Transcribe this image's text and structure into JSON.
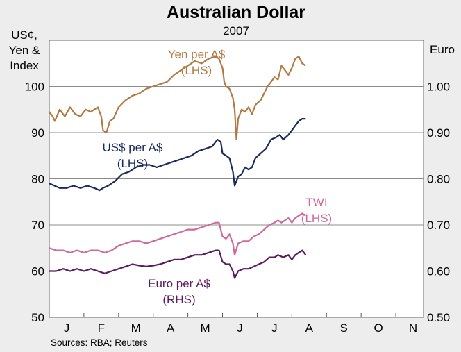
{
  "chart_data": {
    "type": "line",
    "title": "Australian Dollar",
    "subtitle": "2007",
    "left_axis": {
      "title_lines": [
        "US¢,",
        "Yen &",
        "Index"
      ],
      "ylim": [
        50,
        110
      ],
      "ticks": [
        50,
        60,
        70,
        80,
        90,
        100
      ],
      "tick_labels": [
        "50",
        "60",
        "70",
        "80",
        "90",
        "100"
      ]
    },
    "right_axis": {
      "title": "Euro",
      "ylim": [
        0.5,
        1.1
      ],
      "ticks": [
        0.5,
        0.6,
        0.7,
        0.8,
        0.9,
        1.0
      ],
      "tick_labels": [
        "0.50",
        "0.60",
        "0.70",
        "0.80",
        "0.90",
        "1.00"
      ]
    },
    "months": [
      "J",
      "F",
      "M",
      "A",
      "M",
      "J",
      "J",
      "A",
      "S",
      "O",
      "N"
    ],
    "grid": true,
    "source": "Sources: RBA; Reuters",
    "series": [
      {
        "name": "Yen per A$",
        "label_lines": [
          "Yen per A$",
          "(LHS)"
        ],
        "axis": "left",
        "color": "#b07a45",
        "points": [
          [
            0.0,
            94.5
          ],
          [
            0.1,
            93.5
          ],
          [
            0.16,
            92.5
          ],
          [
            0.3,
            95.0
          ],
          [
            0.45,
            93.5
          ],
          [
            0.6,
            95.5
          ],
          [
            0.75,
            94.0
          ],
          [
            0.9,
            93.5
          ],
          [
            1.05,
            95.0
          ],
          [
            1.2,
            94.5
          ],
          [
            1.4,
            95.5
          ],
          [
            1.5,
            93.5
          ],
          [
            1.55,
            90.5
          ],
          [
            1.65,
            90.0
          ],
          [
            1.75,
            92.5
          ],
          [
            1.85,
            93.0
          ],
          [
            2.0,
            95.5
          ],
          [
            2.2,
            97.0
          ],
          [
            2.4,
            98.0
          ],
          [
            2.6,
            98.5
          ],
          [
            2.8,
            99.5
          ],
          [
            3.0,
            100.0
          ],
          [
            3.2,
            100.5
          ],
          [
            3.4,
            101.0
          ],
          [
            3.6,
            102.5
          ],
          [
            3.8,
            103.5
          ],
          [
            4.0,
            104.5
          ],
          [
            4.2,
            105.5
          ],
          [
            4.4,
            105.0
          ],
          [
            4.6,
            106.0
          ],
          [
            4.8,
            106.5
          ],
          [
            4.9,
            106.0
          ],
          [
            5.0,
            104.0
          ],
          [
            5.05,
            101.0
          ],
          [
            5.1,
            100.0
          ],
          [
            5.2,
            99.5
          ],
          [
            5.3,
            97.5
          ],
          [
            5.35,
            95.0
          ],
          [
            5.4,
            88.5
          ],
          [
            5.45,
            93.0
          ],
          [
            5.55,
            95.0
          ],
          [
            5.65,
            94.5
          ],
          [
            5.75,
            95.5
          ],
          [
            5.85,
            94.0
          ],
          [
            5.95,
            96.0
          ],
          [
            6.1,
            97.0
          ],
          [
            6.3,
            100.0
          ],
          [
            6.5,
            102.0
          ],
          [
            6.6,
            101.5
          ],
          [
            6.7,
            104.5
          ],
          [
            6.8,
            103.5
          ],
          [
            6.9,
            102.5
          ],
          [
            7.0,
            104.0
          ],
          [
            7.1,
            106.0
          ],
          [
            7.2,
            106.5
          ],
          [
            7.3,
            105.0
          ],
          [
            7.4,
            104.5
          ]
        ]
      },
      {
        "name": "US$ per A$",
        "label_lines": [
          "US$ per A$",
          "(LHS)"
        ],
        "axis": "left",
        "color": "#1a2a5e",
        "points": [
          [
            0.0,
            79.0
          ],
          [
            0.15,
            78.5
          ],
          [
            0.3,
            78.0
          ],
          [
            0.5,
            78.0
          ],
          [
            0.7,
            78.5
          ],
          [
            0.9,
            78.0
          ],
          [
            1.1,
            78.5
          ],
          [
            1.3,
            78.0
          ],
          [
            1.45,
            77.5
          ],
          [
            1.55,
            78.0
          ],
          [
            1.7,
            78.5
          ],
          [
            1.9,
            79.5
          ],
          [
            2.1,
            81.0
          ],
          [
            2.3,
            81.5
          ],
          [
            2.5,
            82.5
          ],
          [
            2.7,
            83.0
          ],
          [
            2.9,
            83.0
          ],
          [
            3.1,
            82.5
          ],
          [
            3.3,
            83.0
          ],
          [
            3.5,
            83.5
          ],
          [
            3.7,
            84.0
          ],
          [
            3.9,
            84.5
          ],
          [
            4.1,
            85.0
          ],
          [
            4.3,
            86.0
          ],
          [
            4.5,
            86.5
          ],
          [
            4.7,
            87.0
          ],
          [
            4.85,
            88.5
          ],
          [
            4.95,
            88.0
          ],
          [
            5.0,
            85.5
          ],
          [
            5.1,
            85.0
          ],
          [
            5.2,
            84.5
          ],
          [
            5.3,
            81.5
          ],
          [
            5.35,
            78.5
          ],
          [
            5.45,
            80.5
          ],
          [
            5.55,
            81.0
          ],
          [
            5.65,
            82.5
          ],
          [
            5.75,
            82.0
          ],
          [
            5.85,
            82.5
          ],
          [
            5.95,
            84.5
          ],
          [
            6.1,
            85.5
          ],
          [
            6.25,
            86.5
          ],
          [
            6.4,
            88.5
          ],
          [
            6.55,
            89.0
          ],
          [
            6.65,
            89.5
          ],
          [
            6.75,
            88.5
          ],
          [
            6.9,
            89.5
          ],
          [
            7.0,
            90.5
          ],
          [
            7.1,
            91.5
          ],
          [
            7.2,
            92.5
          ],
          [
            7.3,
            93.0
          ],
          [
            7.4,
            93.0
          ]
        ]
      },
      {
        "name": "TWI",
        "label_lines": [
          "TWI",
          "(LHS)"
        ],
        "axis": "left",
        "color": "#cf6a98",
        "points": [
          [
            0.0,
            65.0
          ],
          [
            0.2,
            64.5
          ],
          [
            0.4,
            64.5
          ],
          [
            0.6,
            64.0
          ],
          [
            0.8,
            64.5
          ],
          [
            1.0,
            64.0
          ],
          [
            1.2,
            64.5
          ],
          [
            1.4,
            64.5
          ],
          [
            1.6,
            64.0
          ],
          [
            1.8,
            64.5
          ],
          [
            2.0,
            65.5
          ],
          [
            2.2,
            66.0
          ],
          [
            2.4,
            66.5
          ],
          [
            2.6,
            66.5
          ],
          [
            2.8,
            66.0
          ],
          [
            3.0,
            66.5
          ],
          [
            3.2,
            67.0
          ],
          [
            3.4,
            67.5
          ],
          [
            3.6,
            68.0
          ],
          [
            3.8,
            68.5
          ],
          [
            4.0,
            69.0
          ],
          [
            4.2,
            69.0
          ],
          [
            4.4,
            69.5
          ],
          [
            4.6,
            70.0
          ],
          [
            4.8,
            70.5
          ],
          [
            4.9,
            70.5
          ],
          [
            5.0,
            67.5
          ],
          [
            5.1,
            67.0
          ],
          [
            5.2,
            68.0
          ],
          [
            5.3,
            66.0
          ],
          [
            5.35,
            63.5
          ],
          [
            5.45,
            66.0
          ],
          [
            5.6,
            66.5
          ],
          [
            5.75,
            66.5
          ],
          [
            5.9,
            67.5
          ],
          [
            6.05,
            68.0
          ],
          [
            6.2,
            69.0
          ],
          [
            6.35,
            70.0
          ],
          [
            6.5,
            70.5
          ],
          [
            6.6,
            71.0
          ],
          [
            6.7,
            70.5
          ],
          [
            6.8,
            71.0
          ],
          [
            6.9,
            71.5
          ],
          [
            7.0,
            70.5
          ],
          [
            7.1,
            71.5
          ],
          [
            7.2,
            72.0
          ],
          [
            7.3,
            72.5
          ],
          [
            7.4,
            72.0
          ]
        ]
      },
      {
        "name": "Euro per A$",
        "label_lines": [
          "Euro per A$",
          "(RHS)"
        ],
        "axis": "right",
        "color": "#5b1a60",
        "points": [
          [
            0.0,
            0.6
          ],
          [
            0.2,
            0.6
          ],
          [
            0.4,
            0.605
          ],
          [
            0.6,
            0.6
          ],
          [
            0.8,
            0.605
          ],
          [
            1.0,
            0.6
          ],
          [
            1.2,
            0.605
          ],
          [
            1.4,
            0.6
          ],
          [
            1.6,
            0.595
          ],
          [
            1.8,
            0.6
          ],
          [
            2.0,
            0.605
          ],
          [
            2.2,
            0.61
          ],
          [
            2.4,
            0.615
          ],
          [
            2.6,
            0.612
          ],
          [
            2.8,
            0.61
          ],
          [
            3.0,
            0.612
          ],
          [
            3.2,
            0.615
          ],
          [
            3.4,
            0.62
          ],
          [
            3.6,
            0.625
          ],
          [
            3.8,
            0.625
          ],
          [
            4.0,
            0.63
          ],
          [
            4.2,
            0.635
          ],
          [
            4.4,
            0.635
          ],
          [
            4.6,
            0.64
          ],
          [
            4.8,
            0.645
          ],
          [
            4.9,
            0.645
          ],
          [
            5.0,
            0.62
          ],
          [
            5.1,
            0.615
          ],
          [
            5.2,
            0.615
          ],
          [
            5.3,
            0.6
          ],
          [
            5.35,
            0.585
          ],
          [
            5.45,
            0.6
          ],
          [
            5.6,
            0.605
          ],
          [
            5.75,
            0.605
          ],
          [
            5.9,
            0.61
          ],
          [
            6.05,
            0.615
          ],
          [
            6.2,
            0.62
          ],
          [
            6.35,
            0.63
          ],
          [
            6.5,
            0.63
          ],
          [
            6.6,
            0.635
          ],
          [
            6.75,
            0.63
          ],
          [
            6.9,
            0.635
          ],
          [
            7.0,
            0.625
          ],
          [
            7.1,
            0.635
          ],
          [
            7.2,
            0.64
          ],
          [
            7.3,
            0.645
          ],
          [
            7.4,
            0.635
          ]
        ]
      }
    ]
  }
}
